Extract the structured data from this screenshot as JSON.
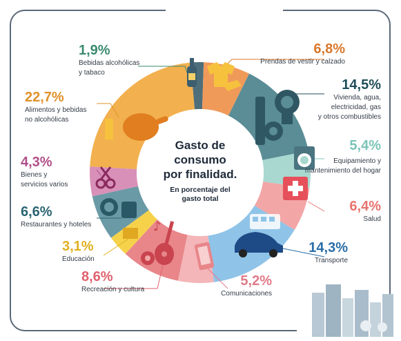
{
  "center": {
    "title_line1": "Gasto de",
    "title_line2": "consumo",
    "title_line3": "por finalidad.",
    "subtitle_line1": "En porcentaje del",
    "subtitle_line2": "gasto total"
  },
  "chart_data": {
    "type": "pie",
    "variant": "donut",
    "title": "Gasto de consumo por finalidad.",
    "subtitle": "En porcentaje del gasto total",
    "slices": [
      {
        "pct": "1,9%",
        "value": 1.9,
        "label_line1": "Bebidas alcohólicas",
        "label_line2": "y tabaco",
        "color": "#4e6e7a",
        "text_color": "#3a8a6e"
      },
      {
        "pct": "6,8%",
        "value": 6.8,
        "label_line1": "Prendas de vestir y calzado",
        "label_line2": "",
        "color": "#f09a5a",
        "text_color": "#d9782c"
      },
      {
        "pct": "14,5%",
        "value": 14.5,
        "label_line1": "Vivienda, agua,",
        "label_line2": "electricidad, gas",
        "label_line3": "y otros combustibles",
        "color": "#5a8d96",
        "text_color": "#1f4e5a"
      },
      {
        "pct": "5,4%",
        "value": 5.4,
        "label_line1": "Equipamiento y",
        "label_line2": "mantenimiento del hogar",
        "color": "#a8d8d0",
        "text_color": "#7cc4b8"
      },
      {
        "pct": "6,4%",
        "value": 6.4,
        "label_line1": "Salud",
        "label_line2": "",
        "color": "#f2a6a6",
        "text_color": "#e8736e"
      },
      {
        "pct": "14,3%",
        "value": 14.3,
        "label_line1": "Transporte",
        "label_line2": "",
        "color": "#8fc4e8",
        "text_color": "#2a6ea8"
      },
      {
        "pct": "5,2%",
        "value": 5.2,
        "label_line1": "Comunicaciones",
        "label_line2": "",
        "color": "#f4b6b8",
        "text_color": "#e07a88"
      },
      {
        "pct": "8,6%",
        "value": 8.6,
        "label_line1": "Recreación y cultura",
        "label_line2": "",
        "color": "#e8868a",
        "text_color": "#e0606e"
      },
      {
        "pct": "3,1%",
        "value": 3.1,
        "label_line1": "Educación",
        "label_line2": "",
        "color": "#f6d24a",
        "text_color": "#e0b020"
      },
      {
        "pct": "6,6%",
        "value": 6.6,
        "label_line1": "Restaurantes y hoteles",
        "label_line2": "",
        "color": "#6a9aa6",
        "text_color": "#2a6472"
      },
      {
        "pct": "4,3%",
        "value": 4.3,
        "label_line1": "Bienes y",
        "label_line2": "servicios varios",
        "color": "#d890b8",
        "text_color": "#b0508a"
      },
      {
        "pct": "22,7%",
        "value": 22.7,
        "label_line1": "Alimentos y bebidas",
        "label_line2": "no alcohólicas",
        "color": "#f2b04e",
        "text_color": "#e0902a"
      }
    ]
  },
  "icons": [
    "bottle-icon",
    "tshirt-icon",
    "key-icon",
    "lightbulb-icon",
    "washing-machine-icon",
    "medical-cross-icon",
    "bus-icon",
    "car-icon",
    "phone-icon",
    "guitar-icon",
    "ball-icon",
    "music-note-icon",
    "book-icon",
    "plate-icon",
    "suitcase-icon",
    "scissors-icon",
    "chicken-icon",
    "glass-icon",
    "city-skyline-icon"
  ]
}
